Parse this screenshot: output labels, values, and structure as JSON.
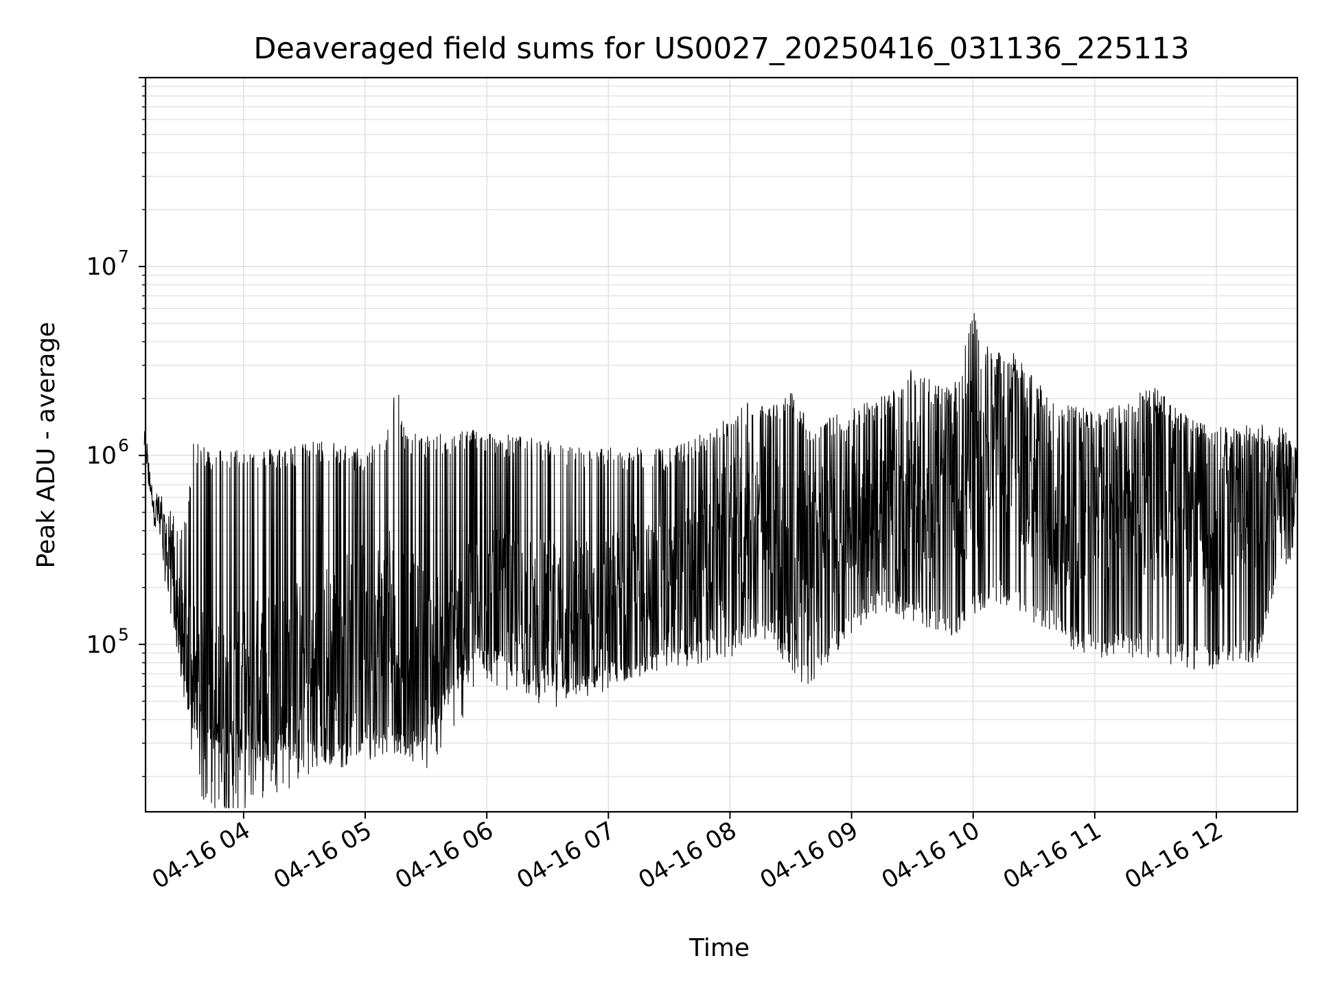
{
  "chart_data": {
    "type": "line",
    "title": "Deaveraged field sums for US0027_20250416_031136_225113",
    "xlabel": "Time",
    "ylabel": "Peak ADU - average",
    "y_scale": "log",
    "ylim": [
      13000,
      100000000
    ],
    "xlim": [
      "2025-04-16 03:11:36",
      "2025-04-16 12:40:00"
    ],
    "grid": true,
    "grid_color": "#e5e5e5",
    "line_color": "#000000",
    "x_ticks": [
      "2025-04-16 04:00",
      "2025-04-16 05:00",
      "2025-04-16 06:00",
      "2025-04-16 07:00",
      "2025-04-16 08:00",
      "2025-04-16 09:00",
      "2025-04-16 10:00",
      "2025-04-16 11:00",
      "2025-04-16 12:00"
    ],
    "x_tick_labels": [
      "04-16 04",
      "04-16 05",
      "04-16 06",
      "04-16 07",
      "04-16 08",
      "04-16 09",
      "04-16 10",
      "04-16 11",
      "04-16 12"
    ],
    "y_ticks": [
      100000,
      1000000,
      10000000
    ],
    "y_tick_labels": [
      {
        "base": "10",
        "exp": "5"
      },
      {
        "base": "10",
        "exp": "6"
      },
      {
        "base": "10",
        "exp": "7"
      }
    ],
    "series": [
      {
        "x": [
          "2025-04-16 03:11",
          "2025-04-16 03:15",
          "2025-04-16 03:20",
          "2025-04-16 03:25",
          "2025-04-16 03:30",
          "2025-04-16 03:35",
          "2025-04-16 03:40",
          "2025-04-16 03:45",
          "2025-04-16 03:50",
          "2025-04-16 03:55",
          "2025-04-16 04:00",
          "2025-04-16 04:05",
          "2025-04-16 04:10",
          "2025-04-16 04:15",
          "2025-04-16 04:20",
          "2025-04-16 04:25",
          "2025-04-16 04:30",
          "2025-04-16 04:35",
          "2025-04-16 04:40",
          "2025-04-16 04:45",
          "2025-04-16 04:50",
          "2025-04-16 04:55",
          "2025-04-16 05:00",
          "2025-04-16 05:05",
          "2025-04-16 05:10",
          "2025-04-16 05:15",
          "2025-04-16 05:20",
          "2025-04-16 05:25",
          "2025-04-16 05:30",
          "2025-04-16 05:35",
          "2025-04-16 05:40",
          "2025-04-16 05:45",
          "2025-04-16 05:50",
          "2025-04-16 05:55",
          "2025-04-16 06:00",
          "2025-04-16 06:10",
          "2025-04-16 06:20",
          "2025-04-16 06:30",
          "2025-04-16 06:40",
          "2025-04-16 06:50",
          "2025-04-16 07:00",
          "2025-04-16 07:10",
          "2025-04-16 07:20",
          "2025-04-16 07:30",
          "2025-04-16 07:40",
          "2025-04-16 07:50",
          "2025-04-16 08:00",
          "2025-04-16 08:10",
          "2025-04-16 08:20",
          "2025-04-16 08:30",
          "2025-04-16 08:40",
          "2025-04-16 08:50",
          "2025-04-16 09:00",
          "2025-04-16 09:10",
          "2025-04-16 09:20",
          "2025-04-16 09:30",
          "2025-04-16 09:40",
          "2025-04-16 09:50",
          "2025-04-16 10:00",
          "2025-04-16 10:10",
          "2025-04-16 10:20",
          "2025-04-16 10:30",
          "2025-04-16 10:40",
          "2025-04-16 10:50",
          "2025-04-16 11:00",
          "2025-04-16 11:10",
          "2025-04-16 11:20",
          "2025-04-16 11:30",
          "2025-04-16 11:40",
          "2025-04-16 11:50",
          "2025-04-16 12:00",
          "2025-04-16 12:10",
          "2025-04-16 12:20",
          "2025-04-16 12:30",
          "2025-04-16 12:40"
        ],
        "low": [
          1000000,
          550000,
          300000,
          150000,
          65000,
          40000,
          35000,
          32000,
          30000,
          30000,
          30000,
          29000,
          28000,
          28000,
          28000,
          27000,
          27000,
          27000,
          26000,
          26000,
          26000,
          27000,
          28000,
          28000,
          29000,
          30000,
          30000,
          33000,
          38000,
          45000,
          55000,
          65000,
          75000,
          90000,
          90000,
          80000,
          70000,
          65000,
          60000,
          65000,
          70000,
          75000,
          80000,
          85000,
          90000,
          95000,
          100000,
          120000,
          120000,
          80000,
          70000,
          100000,
          130000,
          170000,
          170000,
          150000,
          140000,
          130000,
          160000,
          200000,
          180000,
          150000,
          130000,
          110000,
          100000,
          100000,
          100000,
          100000,
          90000,
          85000,
          85000,
          90000,
          95000,
          250000,
          350000
        ],
        "high": [
          1500000,
          800000,
          600000,
          500000,
          400000,
          1150000,
          1150000,
          1100000,
          1100000,
          1100000,
          1100000,
          1100000,
          1100000,
          1100000,
          1150000,
          1150000,
          1150000,
          1200000,
          1200000,
          1200000,
          1150000,
          1100000,
          1100000,
          1200000,
          1300000,
          2800000,
          1300000,
          1300000,
          1300000,
          1300000,
          1300000,
          1350000,
          1400000,
          1400000,
          1350000,
          1300000,
          1250000,
          1200000,
          1150000,
          1100000,
          1100000,
          1100000,
          1100000,
          1100000,
          1200000,
          1400000,
          1600000,
          2000000,
          1800000,
          2200000,
          1500000,
          1600000,
          1800000,
          2000000,
          2200000,
          3200000,
          2500000,
          2200000,
          5800000,
          3500000,
          3500000,
          2600000,
          2000000,
          1800000,
          1800000,
          1800000,
          2200000,
          2300000,
          1800000,
          1500000,
          1450000,
          1450000,
          1450000,
          1450000,
          1300000
        ],
        "mid": [
          1200000,
          600000,
          400000,
          250000,
          100000,
          60000,
          45000,
          40000,
          38000,
          40000,
          45000,
          50000,
          55000,
          60000,
          60000,
          62000,
          65000,
          70000,
          75000,
          80000,
          85000,
          90000,
          100000,
          110000,
          120000,
          130000,
          100000,
          80000,
          75000,
          80000,
          90000,
          100000,
          120000,
          140000,
          160000,
          150000,
          140000,
          130000,
          130000,
          140000,
          150000,
          170000,
          180000,
          200000,
          230000,
          280000,
          350000,
          450000,
          450000,
          250000,
          300000,
          400000,
          500000,
          550000,
          600000,
          600000,
          550000,
          600000,
          900000,
          1200000,
          1100000,
          700000,
          500000,
          450000,
          500000,
          550000,
          600000,
          650000,
          600000,
          550000,
          500000,
          550000,
          650000,
          700000,
          650000
        ]
      }
    ]
  }
}
